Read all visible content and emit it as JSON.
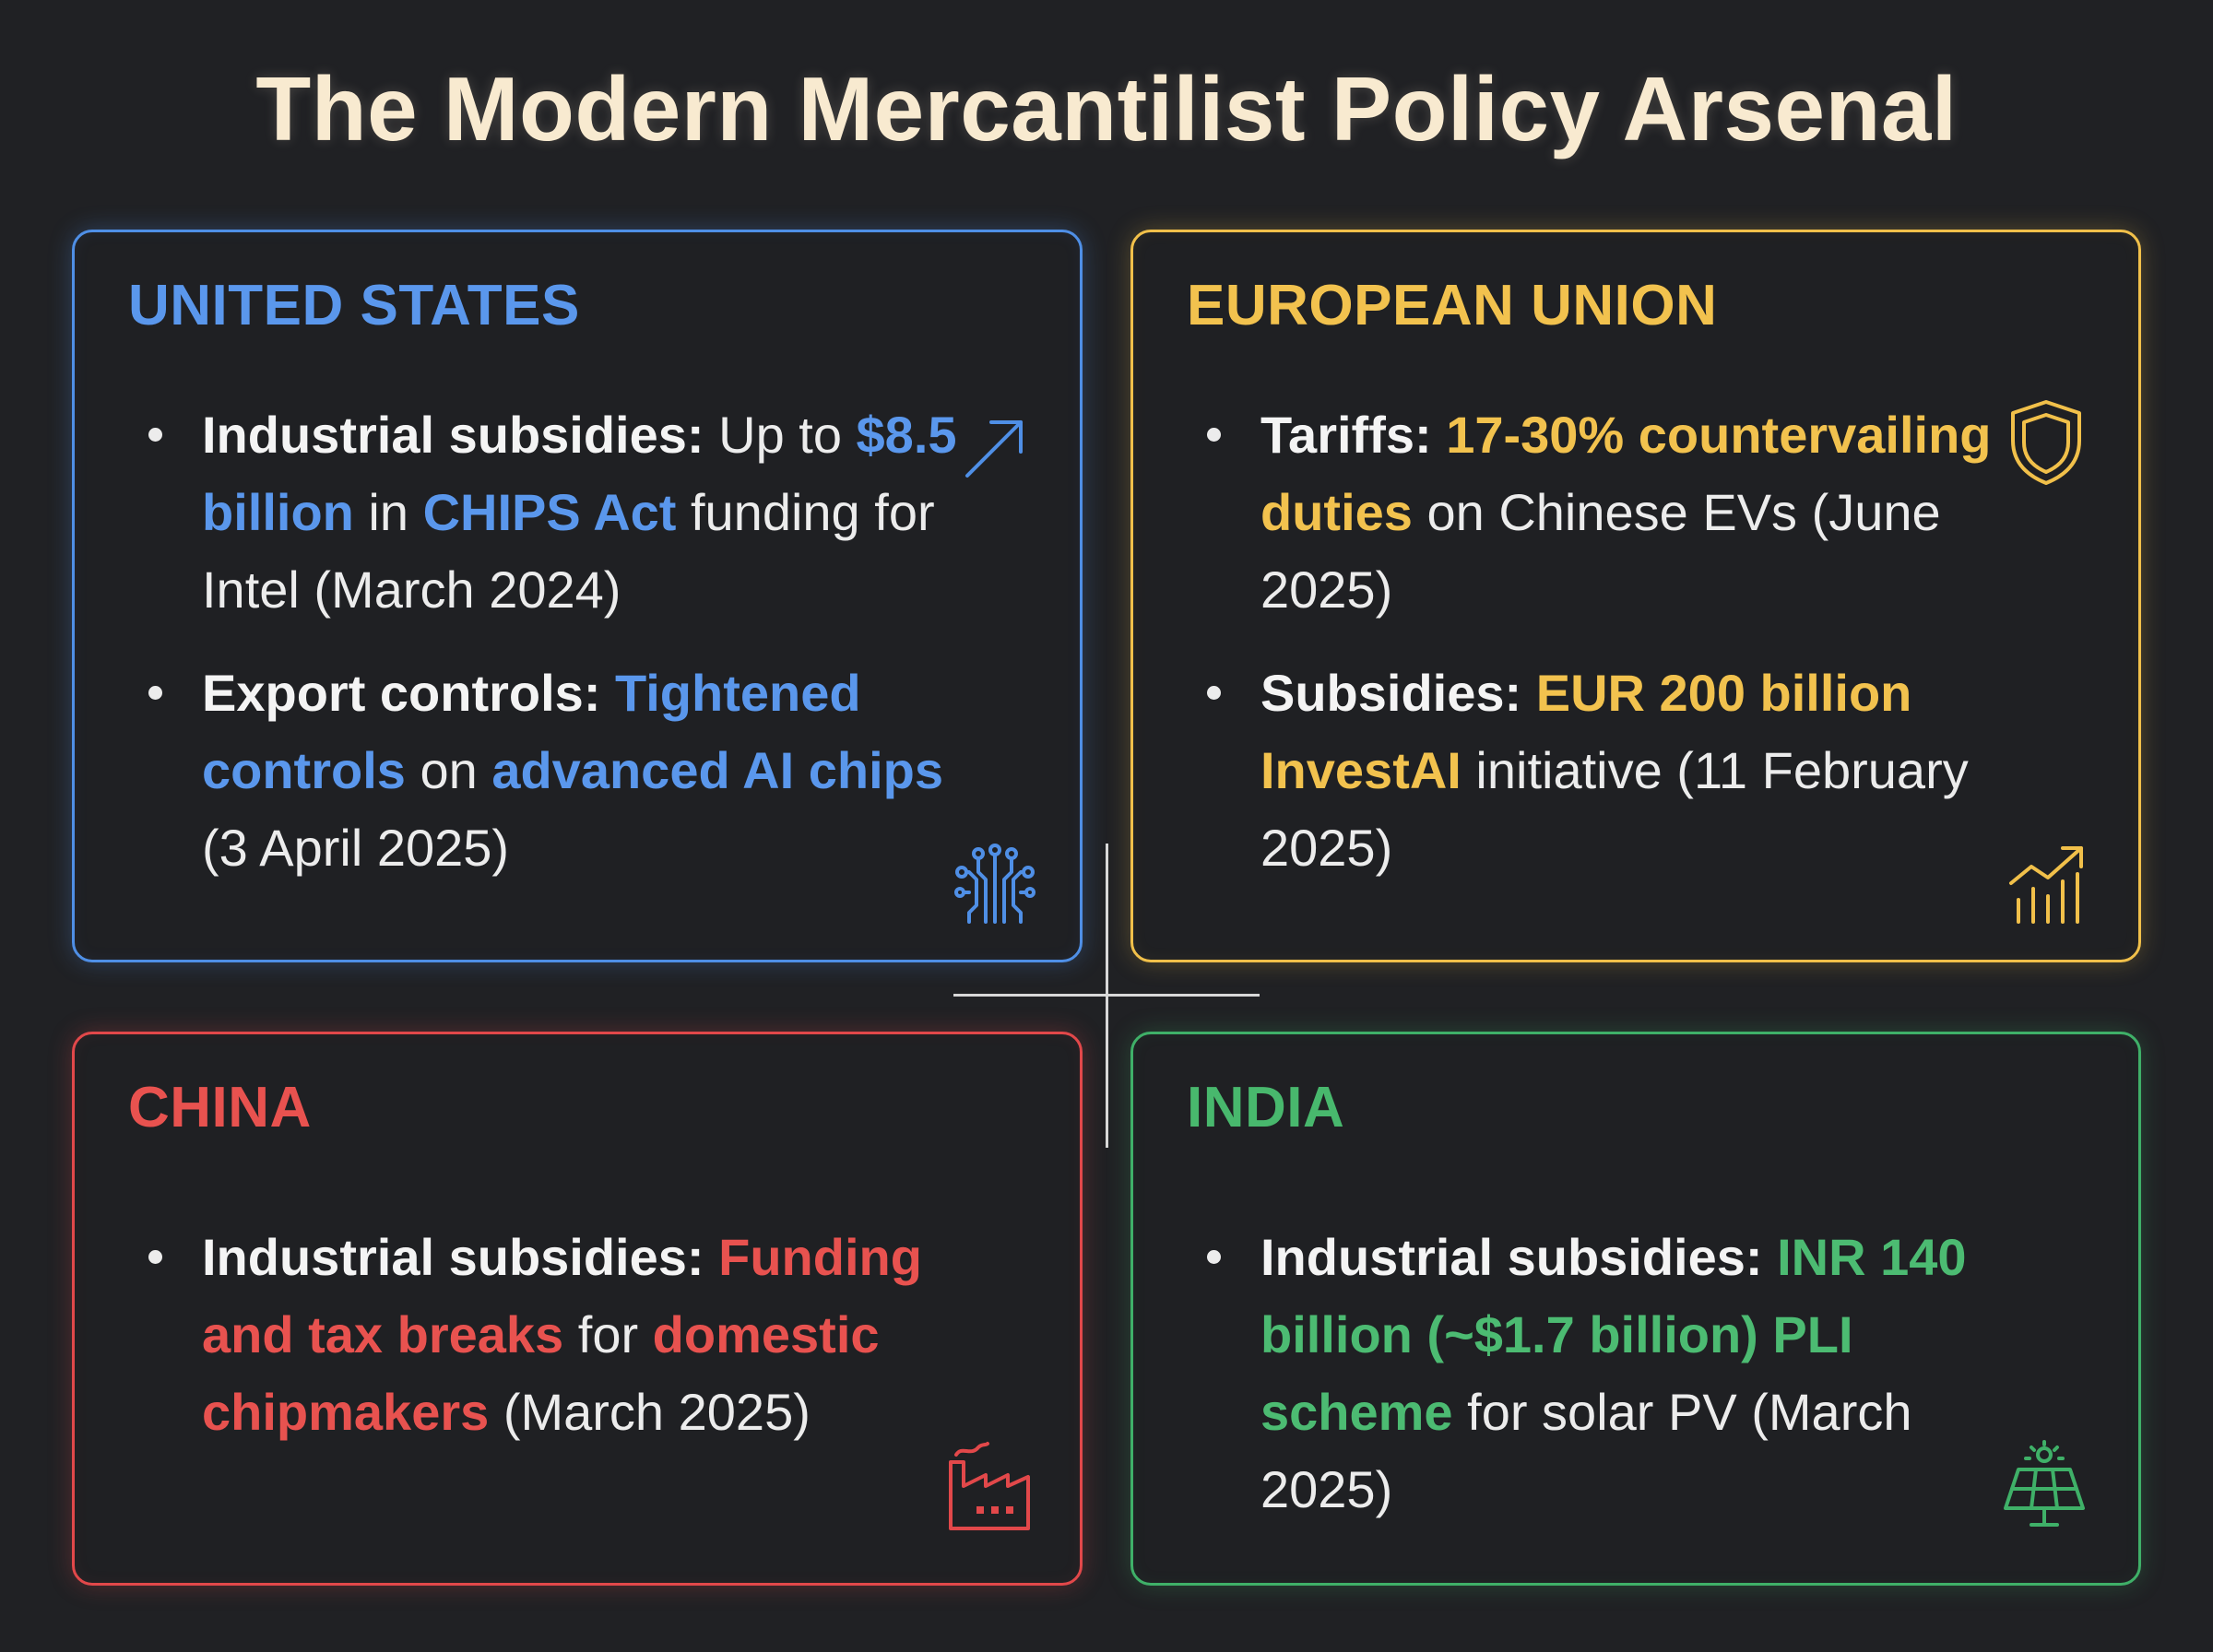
{
  "title": "The Modern Mercantilist Policy Arsenal",
  "colors": {
    "background": "#202124",
    "title": "#f8ead0",
    "united_states": "#5a97ec",
    "european_union": "#f2c24e",
    "china": "#e8524f",
    "india": "#48b86d"
  },
  "panels": {
    "united_states": {
      "heading": "UNITED STATES",
      "items": [
        {
          "label": "Industrial subsidies:",
          "parts": [
            " Up to ",
            "$8.5 billion",
            " in ",
            "CHIPS Act",
            " funding for Intel (March 2024)"
          ],
          "icon": "arrow-up-right-icon"
        },
        {
          "label": "Export controls:",
          "parts": [
            " ",
            "Tightened controls",
            " on ",
            "advanced AI chips",
            " (3 April 2025)"
          ],
          "icon": "circuit-chip-icon"
        }
      ]
    },
    "european_union": {
      "heading": "EUROPEAN UNION",
      "items": [
        {
          "label": "Tariffs:",
          "parts": [
            " ",
            "17-30% countervailing duties",
            " on Chinese EVs (June 2025)"
          ],
          "icon": "shield-icon"
        },
        {
          "label": "Subsidies:",
          "parts": [
            " ",
            "EUR 200 billion InvestAI",
            " initiative (11 February 2025)"
          ],
          "icon": "growth-chart-icon"
        }
      ]
    },
    "china": {
      "heading": "CHINA",
      "items": [
        {
          "label": "Industrial subsidies:",
          "parts": [
            " ",
            "Funding and tax breaks",
            " for ",
            "domestic chipmakers",
            " (March 2025)"
          ],
          "icon": "factory-icon"
        }
      ]
    },
    "india": {
      "heading": "INDIA",
      "items": [
        {
          "label": "Industrial subsidies:",
          "parts": [
            " ",
            "INR 140 billion (~$1.7 billion) PLI scheme",
            " for solar PV (March 2025)"
          ],
          "icon": "solar-panel-icon"
        }
      ]
    }
  }
}
